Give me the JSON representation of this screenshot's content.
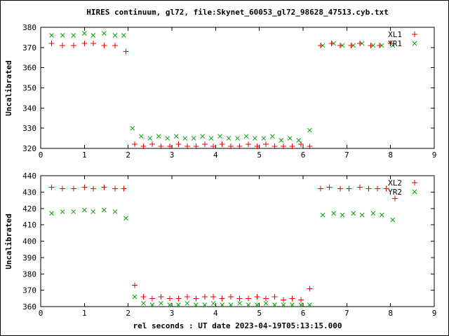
{
  "title": "HIRES continuum, gl72, file:Skynet_60053_gl72_98628_47513.cyb.txt",
  "xlabel": "rel seconds : UT date 2023-04-19T05:13:15.000",
  "colors": {
    "red": "#e60000",
    "green": "#00a000",
    "axis": "#000000"
  },
  "chart_data": [
    {
      "type": "scatter",
      "title": "",
      "ylabel": "Uncalibrated",
      "xlabel": "",
      "xlim": [
        0,
        9
      ],
      "ylim": [
        320,
        380
      ],
      "xticks": [
        0,
        1,
        2,
        3,
        4,
        5,
        6,
        7,
        8,
        9
      ],
      "yticks": [
        320,
        330,
        340,
        350,
        360,
        370,
        380
      ],
      "grid": false,
      "legend_position": "top-right",
      "series": [
        {
          "name": "XL1",
          "marker": "plus",
          "color": "#e60000",
          "points": [
            [
              0.25,
              372
            ],
            [
              0.5,
              371
            ],
            [
              0.75,
              371
            ],
            [
              1.0,
              372
            ],
            [
              1.2,
              372
            ],
            [
              1.45,
              371
            ],
            [
              1.7,
              371
            ],
            [
              1.95,
              368
            ],
            [
              2.15,
              322
            ],
            [
              2.35,
              321
            ],
            [
              2.55,
              322
            ],
            [
              2.75,
              321
            ],
            [
              2.95,
              321
            ],
            [
              3.15,
              322
            ],
            [
              3.35,
              321
            ],
            [
              3.55,
              321
            ],
            [
              3.75,
              322
            ],
            [
              3.95,
              321
            ],
            [
              4.15,
              322
            ],
            [
              4.35,
              321
            ],
            [
              4.55,
              321
            ],
            [
              4.75,
              322
            ],
            [
              4.95,
              321
            ],
            [
              5.15,
              322
            ],
            [
              5.35,
              321
            ],
            [
              5.55,
              321
            ],
            [
              5.75,
              321
            ],
            [
              5.95,
              322
            ],
            [
              6.15,
              321
            ],
            [
              6.4,
              371
            ],
            [
              6.65,
              372
            ],
            [
              6.85,
              371
            ],
            [
              7.1,
              371
            ],
            [
              7.3,
              372
            ],
            [
              7.55,
              371
            ],
            [
              7.75,
              371
            ],
            [
              8.0,
              372
            ]
          ]
        },
        {
          "name": "YR1",
          "marker": "cross",
          "color": "#00a000",
          "points": [
            [
              0.25,
              376
            ],
            [
              0.5,
              376
            ],
            [
              0.75,
              376
            ],
            [
              1.0,
              377
            ],
            [
              1.2,
              376
            ],
            [
              1.45,
              377
            ],
            [
              1.7,
              376
            ],
            [
              1.9,
              376
            ],
            [
              2.1,
              330
            ],
            [
              2.3,
              326
            ],
            [
              2.5,
              325
            ],
            [
              2.7,
              326
            ],
            [
              2.9,
              325
            ],
            [
              3.1,
              326
            ],
            [
              3.3,
              325
            ],
            [
              3.5,
              325
            ],
            [
              3.7,
              326
            ],
            [
              3.9,
              325
            ],
            [
              4.1,
              326
            ],
            [
              4.3,
              325
            ],
            [
              4.5,
              325
            ],
            [
              4.7,
              326
            ],
            [
              4.9,
              325
            ],
            [
              5.1,
              325
            ],
            [
              5.3,
              326
            ],
            [
              5.5,
              324
            ],
            [
              5.7,
              325
            ],
            [
              5.9,
              324
            ],
            [
              6.15,
              329
            ],
            [
              6.45,
              371
            ],
            [
              6.7,
              372
            ],
            [
              6.9,
              371
            ],
            [
              7.15,
              371
            ],
            [
              7.35,
              372
            ],
            [
              7.6,
              371
            ],
            [
              7.8,
              371
            ],
            [
              8.05,
              371
            ]
          ]
        }
      ]
    },
    {
      "type": "scatter",
      "title": "",
      "ylabel": "Uncalibrated",
      "xlabel": "rel seconds : UT date 2023-04-19T05:13:15.000",
      "xlim": [
        0,
        9
      ],
      "ylim": [
        360,
        440
      ],
      "xticks": [
        0,
        1,
        2,
        3,
        4,
        5,
        6,
        7,
        8,
        9
      ],
      "yticks": [
        360,
        370,
        380,
        390,
        400,
        410,
        420,
        430,
        440
      ],
      "grid": false,
      "legend_position": "top-right",
      "series": [
        {
          "name": "XL2",
          "marker": "plus",
          "color": "#e60000",
          "points": [
            [
              0.25,
              433
            ],
            [
              0.5,
              432
            ],
            [
              0.75,
              432
            ],
            [
              1.0,
              433
            ],
            [
              1.2,
              432
            ],
            [
              1.45,
              433
            ],
            [
              1.7,
              432
            ],
            [
              1.9,
              432
            ],
            [
              2.15,
              373
            ],
            [
              2.35,
              366
            ],
            [
              2.55,
              365
            ],
            [
              2.75,
              366
            ],
            [
              2.95,
              365
            ],
            [
              3.15,
              365
            ],
            [
              3.35,
              366
            ],
            [
              3.55,
              365
            ],
            [
              3.75,
              366
            ],
            [
              3.95,
              366
            ],
            [
              4.15,
              365
            ],
            [
              4.35,
              366
            ],
            [
              4.55,
              365
            ],
            [
              4.75,
              365
            ],
            [
              4.95,
              366
            ],
            [
              5.15,
              365
            ],
            [
              5.35,
              366
            ],
            [
              5.55,
              364
            ],
            [
              5.75,
              365
            ],
            [
              5.95,
              364
            ],
            [
              6.15,
              371
            ],
            [
              6.4,
              432
            ],
            [
              6.6,
              433
            ],
            [
              6.85,
              432
            ],
            [
              7.05,
              432
            ],
            [
              7.3,
              433
            ],
            [
              7.5,
              432
            ],
            [
              7.7,
              432
            ],
            [
              7.9,
              432
            ],
            [
              8.1,
              426
            ]
          ]
        },
        {
          "name": "YR2",
          "marker": "cross",
          "color": "#00a000",
          "points": [
            [
              0.25,
              417
            ],
            [
              0.5,
              418
            ],
            [
              0.75,
              418
            ],
            [
              1.0,
              419
            ],
            [
              1.2,
              418
            ],
            [
              1.45,
              419
            ],
            [
              1.7,
              418
            ],
            [
              1.95,
              414
            ],
            [
              2.15,
              366
            ],
            [
              2.35,
              362
            ],
            [
              2.55,
              361
            ],
            [
              2.75,
              362
            ],
            [
              2.95,
              361
            ],
            [
              3.15,
              361
            ],
            [
              3.35,
              362
            ],
            [
              3.55,
              361
            ],
            [
              3.75,
              361
            ],
            [
              3.95,
              362
            ],
            [
              4.15,
              361
            ],
            [
              4.35,
              361
            ],
            [
              4.55,
              362
            ],
            [
              4.75,
              361
            ],
            [
              4.95,
              361
            ],
            [
              5.15,
              362
            ],
            [
              5.35,
              361
            ],
            [
              5.55,
              361
            ],
            [
              5.75,
              361
            ],
            [
              5.95,
              361
            ],
            [
              6.15,
              361
            ],
            [
              6.45,
              416
            ],
            [
              6.7,
              417
            ],
            [
              6.9,
              416
            ],
            [
              7.15,
              417
            ],
            [
              7.35,
              416
            ],
            [
              7.6,
              417
            ],
            [
              7.8,
              416
            ],
            [
              8.05,
              413
            ]
          ]
        }
      ]
    }
  ]
}
